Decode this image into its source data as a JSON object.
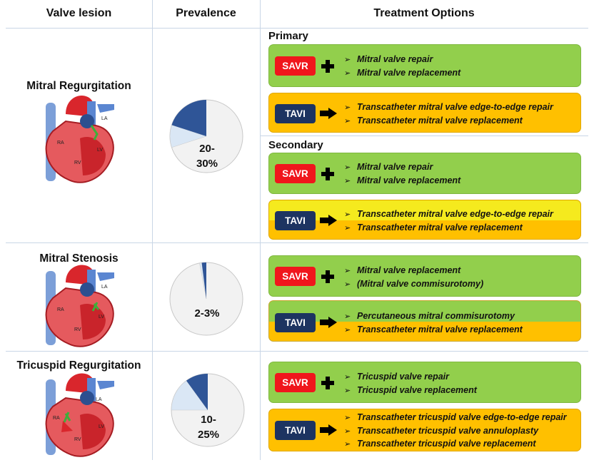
{
  "headers": {
    "valve_lesion": "Valve lesion",
    "prevalence": "Prevalence",
    "treatment_options": "Treatment Options"
  },
  "colors": {
    "green_box": "#92cf4c",
    "orange_box": "#ffc000",
    "yellow_box": "#f5ea1e",
    "savr_badge": "#f0161c",
    "tavi_badge": "#1d3461",
    "pie_dark": "#2f5597",
    "pie_light": "#dae7f5",
    "pie_rest": "#f2f2f2"
  },
  "bullet_symbol": "➢",
  "rows": [
    {
      "lesion": "Mitral Regurgitation",
      "prevalence_text": "20-\n30%",
      "prevalence_range_pct": [
        20,
        30
      ],
      "heart_labels": [
        "LA",
        "RA",
        "LV",
        "RV"
      ],
      "sections": [
        {
          "label": "Primary",
          "treatments": [
            {
              "badge": "SAVR",
              "connector": "plus",
              "options": [
                "Mitral valve repair",
                "Mitral valve replacement"
              ]
            },
            {
              "badge": "TAVI",
              "connector": "arrow",
              "options": [
                "Transcatheter mitral valve edge-to-edge repair",
                "Transcatheter mitral valve replacement"
              ]
            }
          ]
        },
        {
          "label": "Secondary",
          "treatments": [
            {
              "badge": "SAVR",
              "connector": "plus",
              "options": [
                "Mitral valve repair",
                "Mitral valve replacement"
              ]
            },
            {
              "badge": "TAVI",
              "connector": "arrow",
              "options": [
                "Transcatheter mitral valve edge-to-edge repair",
                "Transcatheter mitral valve replacement"
              ]
            }
          ]
        }
      ]
    },
    {
      "lesion": "Mitral Stenosis",
      "prevalence_text": "2-3%",
      "prevalence_range_pct": [
        2,
        3
      ],
      "heart_labels": [
        "LA",
        "RA",
        "LV",
        "RV"
      ],
      "treatments": [
        {
          "badge": "SAVR",
          "connector": "plus",
          "options": [
            "Mitral valve replacement",
            "(Mitral valve commisurotomy)"
          ]
        },
        {
          "badge": "TAVI",
          "connector": "arrow",
          "options": [
            "Percutaneous mitral commisurotomy",
            "Transcatheter mitral valve replacement"
          ]
        }
      ]
    },
    {
      "lesion": "Tricuspid Regurgitation",
      "prevalence_text": "10-\n25%",
      "prevalence_range_pct": [
        10,
        25
      ],
      "heart_labels": [
        "LA",
        "RA",
        "LV",
        "RV"
      ],
      "treatments": [
        {
          "badge": "SAVR",
          "connector": "plus",
          "options": [
            "Tricuspid valve repair",
            "Tricuspid valve replacement"
          ]
        },
        {
          "badge": "TAVI",
          "connector": "arrow",
          "options": [
            "Transcatheter tricuspid valve edge-to-edge repair",
            "Transcatheter tricuspid valve annuloplasty",
            "Transcatheter tricuspid valve replacement"
          ]
        }
      ]
    }
  ]
}
